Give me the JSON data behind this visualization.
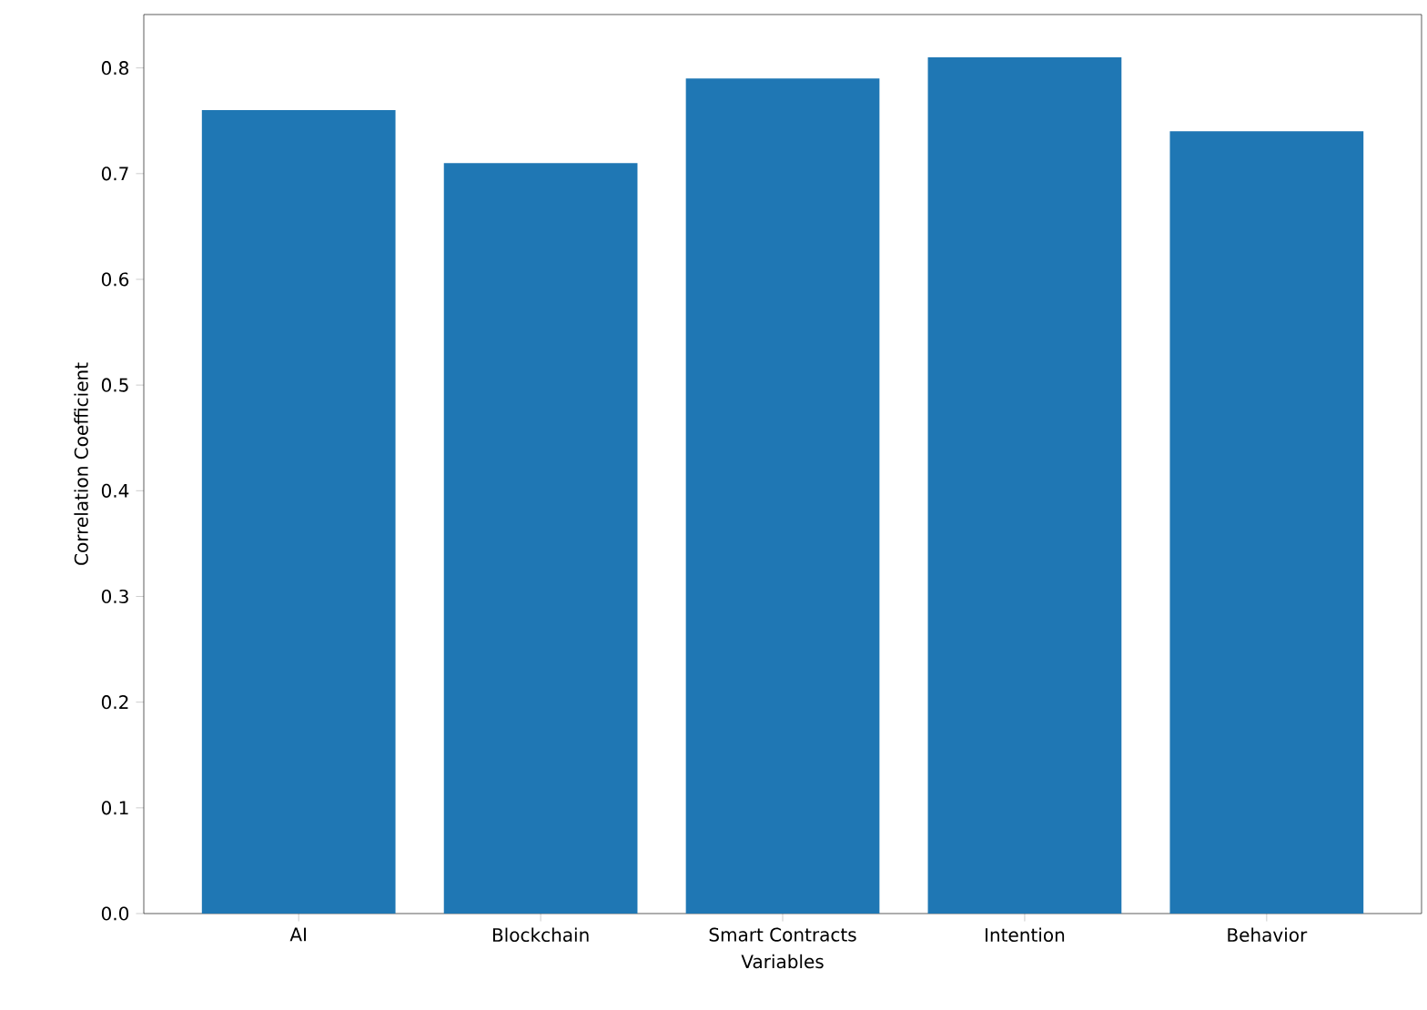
{
  "chart_data": {
    "type": "bar",
    "xlabel": "Variables",
    "ylabel": "Correlation Coefficient",
    "categories": [
      "AI",
      "Blockchain",
      "Smart Contracts",
      "Intention",
      "Behavior"
    ],
    "values": [
      0.76,
      0.71,
      0.79,
      0.81,
      0.74
    ],
    "color": "#1f77b4",
    "ylim": [
      0,
      0.8505
    ],
    "yticks": [
      {
        "value": 0,
        "label": "0.0"
      },
      0.1,
      0.2,
      0.3,
      0.4,
      0.5,
      0.6,
      0.7,
      0.8
    ]
  }
}
